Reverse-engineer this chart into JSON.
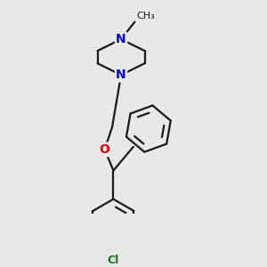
{
  "background_color": "#e8e8e8",
  "bond_color": "#1a1a1a",
  "bond_width": 1.6,
  "atom_colors": {
    "N": "#0000ee",
    "O": "#ee0000",
    "Cl": "#1a7a1a",
    "C": "#1a1a1a"
  },
  "font_size_N": 10,
  "font_size_O": 10,
  "font_size_Cl": 9,
  "font_size_methyl": 8
}
